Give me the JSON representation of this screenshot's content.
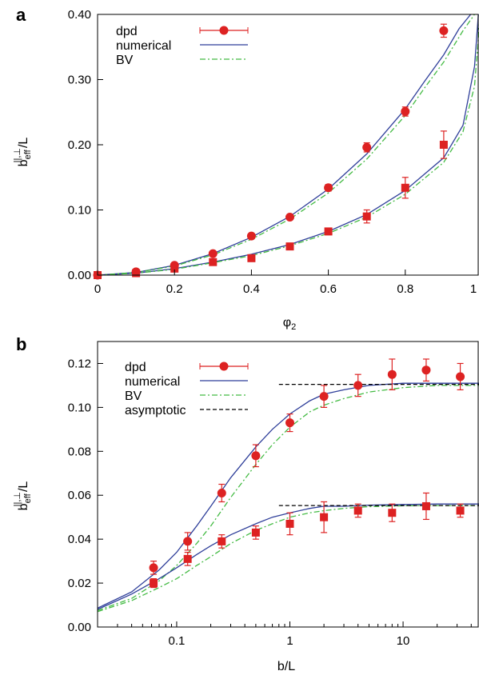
{
  "chart_data": [
    {
      "panel": "a",
      "type": "scatter",
      "xlabel": "φ",
      "xlabel_sub": "2",
      "ylabel": {
        "base": "b",
        "sub": "eff",
        "sup": "||,⊥",
        "tail": "/L"
      },
      "xlim": [
        0,
        1
      ],
      "ylim": [
        0,
        0.4
      ],
      "x_scale": "linear",
      "xticks": [
        0,
        0.2,
        0.4,
        0.6,
        0.8,
        1
      ],
      "xtick_labels": [
        "0",
        "0.2",
        "0.4",
        "0.6",
        "0.8",
        "1"
      ],
      "yticks": [
        0,
        0.1,
        0.2,
        0.3,
        0.4
      ],
      "ytick_labels": [
        "0.00",
        "0.10",
        "0.20",
        "0.30",
        "0.40"
      ],
      "legend": [
        "dpd",
        "numerical",
        "BV"
      ],
      "legend_position": "top-left",
      "colors": {
        "dpd": "#dd2222",
        "numerical": "#2f3f9a",
        "BV": "#44bb44",
        "asymptotic": "#000000"
      },
      "series": [
        {
          "kind": "points",
          "marker": "circle",
          "x": [
            0,
            0.1,
            0.2,
            0.3,
            0.4,
            0.5,
            0.6,
            0.7,
            0.8,
            0.9
          ],
          "y": [
            0.0,
            0.005,
            0.015,
            0.033,
            0.06,
            0.089,
            0.134,
            0.196,
            0.251,
            0.375
          ],
          "err": [
            0.002,
            0.003,
            0.003,
            0.003,
            0.003,
            0.004,
            0.005,
            0.007,
            0.007,
            0.01
          ]
        },
        {
          "kind": "points",
          "marker": "square",
          "x": [
            0,
            0.1,
            0.2,
            0.3,
            0.4,
            0.5,
            0.6,
            0.7,
            0.8,
            0.9
          ],
          "y": [
            0.0,
            0.003,
            0.01,
            0.02,
            0.026,
            0.044,
            0.067,
            0.09,
            0.134,
            0.2
          ],
          "err": [
            0.002,
            0.002,
            0.003,
            0.003,
            0.003,
            0.004,
            0.005,
            0.01,
            0.016,
            0.021
          ]
        },
        {
          "kind": "line",
          "name": "numerical",
          "x": [
            0,
            0.1,
            0.2,
            0.3,
            0.4,
            0.5,
            0.6,
            0.7,
            0.8,
            0.85,
            0.9,
            0.94,
            0.97
          ],
          "y": [
            0.0,
            0.004,
            0.015,
            0.033,
            0.058,
            0.09,
            0.132,
            0.186,
            0.255,
            0.297,
            0.338,
            0.378,
            0.4
          ]
        },
        {
          "kind": "line",
          "name": "BV",
          "x": [
            0,
            0.1,
            0.2,
            0.3,
            0.4,
            0.5,
            0.6,
            0.7,
            0.8,
            0.85,
            0.9,
            0.95,
            0.98
          ],
          "y": [
            0.0,
            0.004,
            0.014,
            0.031,
            0.055,
            0.086,
            0.126,
            0.178,
            0.245,
            0.287,
            0.327,
            0.375,
            0.4
          ]
        },
        {
          "kind": "line",
          "name": "numerical",
          "x": [
            0,
            0.1,
            0.2,
            0.3,
            0.4,
            0.5,
            0.6,
            0.7,
            0.8,
            0.9,
            0.95,
            0.98,
            0.99
          ],
          "y": [
            0.0,
            0.003,
            0.01,
            0.02,
            0.032,
            0.047,
            0.067,
            0.093,
            0.13,
            0.18,
            0.23,
            0.32,
            0.4
          ]
        },
        {
          "kind": "line",
          "name": "BV",
          "x": [
            0,
            0.1,
            0.2,
            0.3,
            0.4,
            0.5,
            0.6,
            0.7,
            0.8,
            0.9,
            0.95,
            0.98,
            0.995
          ],
          "y": [
            0.0,
            0.003,
            0.009,
            0.019,
            0.03,
            0.045,
            0.064,
            0.089,
            0.124,
            0.173,
            0.22,
            0.29,
            0.4
          ]
        }
      ]
    },
    {
      "panel": "b",
      "type": "scatter",
      "xlabel": "b/L",
      "ylabel": {
        "base": "b",
        "sub": "eff",
        "sup": "||,⊥",
        "tail": "/L"
      },
      "x_scale": "log",
      "xlim": [
        0.02,
        50
      ],
      "ylim": [
        0,
        0.13
      ],
      "xticks": [
        0.1,
        1,
        10
      ],
      "xtick_labels": [
        "0.1",
        "1",
        "10"
      ],
      "yticks": [
        0,
        0.02,
        0.04,
        0.06,
        0.08,
        0.1,
        0.12
      ],
      "ytick_labels": [
        "0.00",
        "0.02",
        "0.04",
        "0.06",
        "0.08",
        "0.10",
        "0.12"
      ],
      "legend": [
        "dpd",
        "numerical",
        "BV",
        "asymptotic"
      ],
      "legend_position": "top-left",
      "colors": {
        "dpd": "#dd2222",
        "numerical": "#2f3f9a",
        "BV": "#44bb44",
        "asymptotic": "#000000"
      },
      "series": [
        {
          "kind": "points",
          "marker": "circle",
          "x": [
            0.0625,
            0.125,
            0.25,
            0.5,
            1,
            2,
            4,
            8,
            16,
            32
          ],
          "y": [
            0.027,
            0.039,
            0.061,
            0.078,
            0.093,
            0.105,
            0.11,
            0.115,
            0.117,
            0.114
          ],
          "err": [
            0.003,
            0.004,
            0.004,
            0.005,
            0.004,
            0.005,
            0.005,
            0.007,
            0.005,
            0.006
          ]
        },
        {
          "kind": "points",
          "marker": "square",
          "x": [
            0.0625,
            0.125,
            0.25,
            0.5,
            1,
            2,
            4,
            8,
            16,
            32
          ],
          "y": [
            0.02,
            0.031,
            0.039,
            0.043,
            0.047,
            0.05,
            0.053,
            0.052,
            0.055,
            0.053
          ],
          "err": [
            0.002,
            0.003,
            0.003,
            0.003,
            0.005,
            0.007,
            0.003,
            0.004,
            0.006,
            0.003
          ]
        },
        {
          "kind": "line",
          "name": "numerical",
          "x": [
            0.02,
            0.04,
            0.07,
            0.1,
            0.15,
            0.2,
            0.3,
            0.5,
            0.7,
            1,
            1.5,
            2,
            3,
            5,
            10,
            20,
            50
          ],
          "y": [
            0.0086,
            0.016,
            0.026,
            0.034,
            0.046,
            0.055,
            0.068,
            0.082,
            0.09,
            0.097,
            0.103,
            0.106,
            0.108,
            0.11,
            0.111,
            0.111,
            0.111
          ]
        },
        {
          "kind": "line",
          "name": "BV",
          "x": [
            0.02,
            0.04,
            0.07,
            0.1,
            0.15,
            0.2,
            0.3,
            0.5,
            0.7,
            1,
            1.5,
            2,
            3,
            5,
            10,
            20,
            50
          ],
          "y": [
            0.0075,
            0.013,
            0.021,
            0.028,
            0.038,
            0.046,
            0.059,
            0.074,
            0.083,
            0.091,
            0.098,
            0.101,
            0.104,
            0.107,
            0.109,
            0.11,
            0.11
          ]
        },
        {
          "kind": "line",
          "name": "numerical",
          "x": [
            0.02,
            0.04,
            0.07,
            0.1,
            0.15,
            0.2,
            0.3,
            0.5,
            0.7,
            1,
            1.5,
            2,
            3,
            5,
            10,
            20,
            50
          ],
          "y": [
            0.008,
            0.015,
            0.022,
            0.027,
            0.033,
            0.037,
            0.042,
            0.047,
            0.05,
            0.052,
            0.054,
            0.055,
            0.055,
            0.0555,
            0.0558,
            0.056,
            0.056
          ]
        },
        {
          "kind": "line",
          "name": "BV",
          "x": [
            0.02,
            0.04,
            0.07,
            0.1,
            0.15,
            0.2,
            0.3,
            0.5,
            0.7,
            1,
            1.5,
            2,
            3,
            5,
            10,
            20,
            50
          ],
          "y": [
            0.007,
            0.012,
            0.018,
            0.022,
            0.028,
            0.032,
            0.038,
            0.044,
            0.047,
            0.05,
            0.052,
            0.053,
            0.054,
            0.0548,
            0.0552,
            0.0553,
            0.0553
          ]
        },
        {
          "kind": "line",
          "name": "asymptotic",
          "x": [
            0.8,
            50
          ],
          "y": [
            0.1105,
            0.1105
          ]
        },
        {
          "kind": "line",
          "name": "asymptotic",
          "x": [
            0.8,
            50
          ],
          "y": [
            0.0553,
            0.0553
          ]
        }
      ]
    }
  ]
}
